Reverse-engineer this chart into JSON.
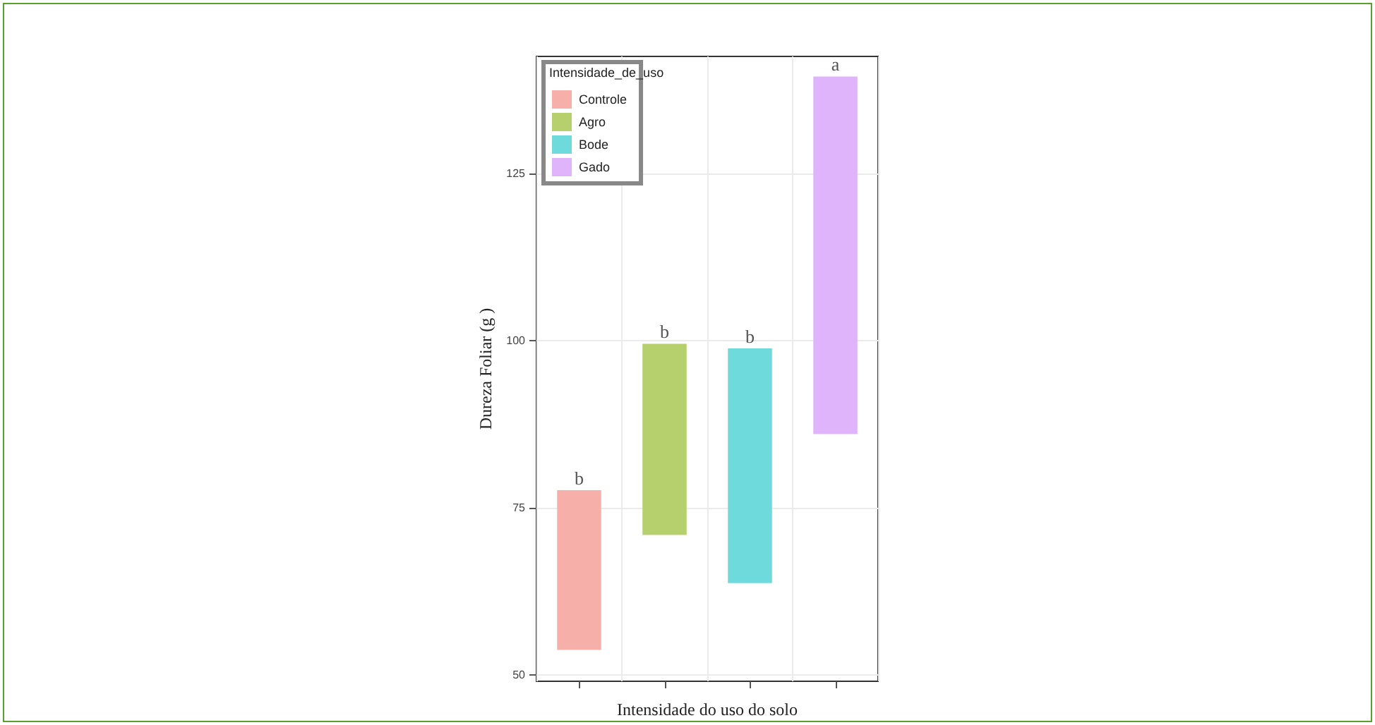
{
  "chart_data": {
    "type": "bar",
    "xlabel": "Intensidade do uso do solo",
    "ylabel": "Dureza Foliar (g )",
    "legend_title": "Intensidade_de_uso",
    "categories": [
      null,
      null,
      null,
      null
    ],
    "series": [
      {
        "name": "Controle",
        "color": "#f7b0a9",
        "values": [
          23.7,
          null,
          null,
          null
        ],
        "base": [
          53.8,
          null,
          null,
          null
        ]
      },
      {
        "name": "Agro",
        "color": "#b5d06c",
        "values": [
          null,
          28.4,
          null,
          null
        ],
        "base": [
          null,
          71.0,
          null,
          null
        ]
      },
      {
        "name": "Bode",
        "color": "#6fdadb",
        "values": [
          null,
          null,
          34.9,
          null
        ],
        "base": [
          null,
          null,
          63.8,
          null
        ]
      },
      {
        "name": "Gado",
        "color": "#dfb4fb",
        "values": [
          null,
          null,
          null,
          53.3
        ],
        "base": [
          null,
          null,
          null,
          86.1
        ]
      }
    ],
    "annotations": [
      "b",
      "b",
      "b",
      "a"
    ],
    "ylim": [
      49,
      142.5
    ],
    "yticks": [
      50,
      75,
      100,
      125
    ],
    "grid": true,
    "legend": "top left"
  }
}
